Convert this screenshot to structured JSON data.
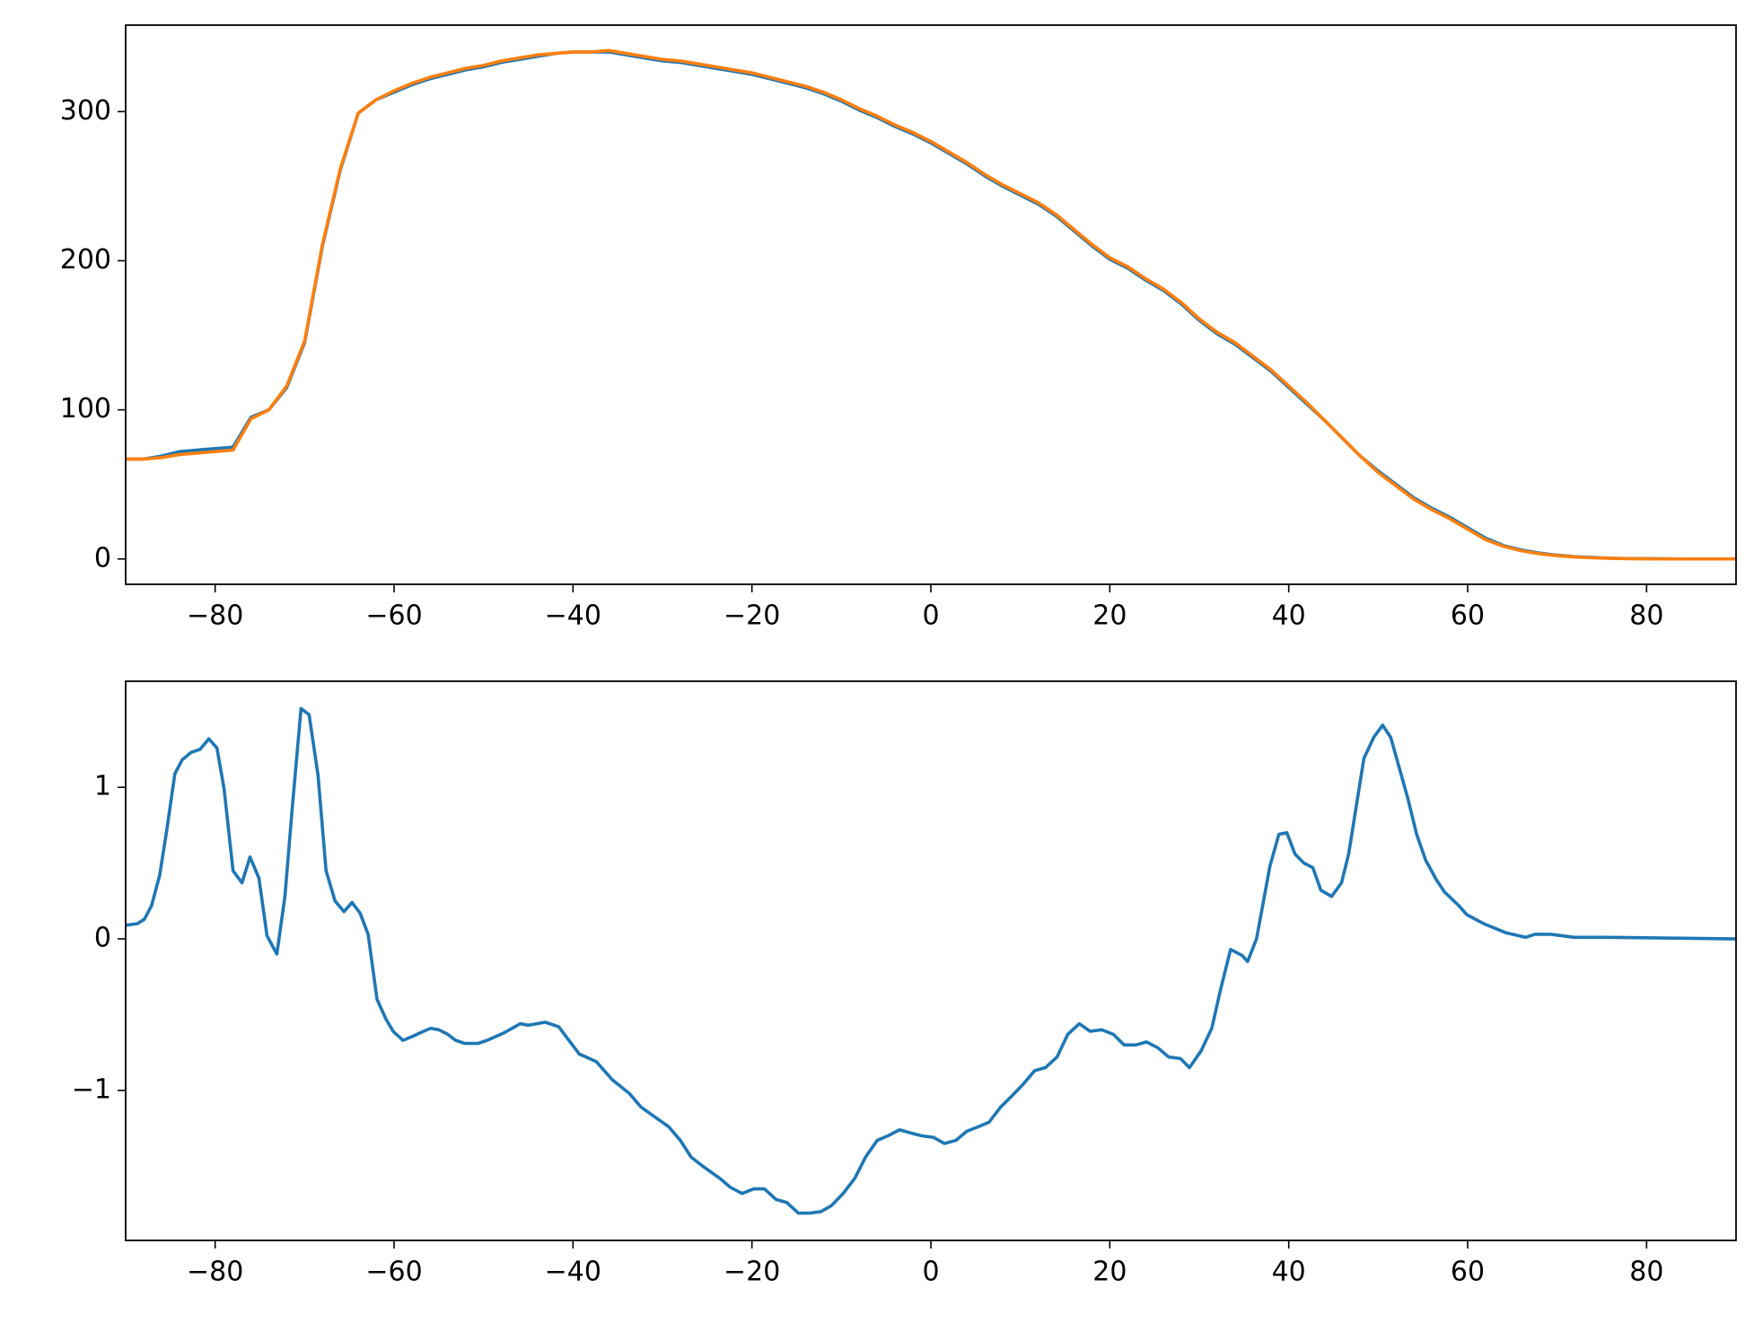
{
  "chart_data": [
    {
      "type": "line",
      "x": [
        -90,
        -88,
        -86,
        -84,
        -82,
        -80,
        -78,
        -76,
        -74,
        -72,
        -70,
        -68,
        -66,
        -64,
        -62,
        -60,
        -58,
        -56,
        -54,
        -52,
        -50,
        -48,
        -46,
        -44,
        -42,
        -40,
        -38,
        -36,
        -34,
        -32,
        -30,
        -28,
        -26,
        -24,
        -22,
        -20,
        -18,
        -16,
        -14,
        -12,
        -10,
        -8,
        -6,
        -4,
        -2,
        0,
        2,
        4,
        6,
        8,
        10,
        12,
        14,
        16,
        18,
        20,
        22,
        24,
        26,
        28,
        30,
        32,
        34,
        36,
        38,
        40,
        42,
        44,
        46,
        48,
        50,
        52,
        54,
        56,
        58,
        60,
        62,
        64,
        66,
        68,
        70,
        72,
        74,
        76,
        78,
        80,
        82,
        84,
        86,
        88,
        90
      ],
      "series": [
        {
          "color": "#1f77b4",
          "values": [
            67,
            67,
            69,
            72,
            73,
            74,
            75,
            95,
            100,
            115,
            145,
            210,
            261,
            299,
            308,
            313,
            318,
            322,
            325,
            328,
            330,
            333,
            335,
            337,
            339,
            340,
            340,
            340,
            338,
            336,
            334,
            333,
            331,
            329,
            327,
            325,
            322,
            319,
            316,
            312,
            307,
            301,
            296,
            290,
            285,
            279,
            272,
            265,
            257,
            250,
            244,
            238,
            230,
            220,
            210,
            201,
            195,
            187,
            180,
            171,
            160,
            151,
            144,
            135,
            126,
            115,
            104,
            93,
            81,
            69,
            59,
            50,
            41,
            34,
            28,
            21,
            14,
            9,
            6,
            4,
            2.5,
            1.5,
            1,
            0.5,
            0.3,
            0.2,
            0.1,
            0,
            0,
            0,
            0
          ]
        },
        {
          "color": "#ff7f0e",
          "values": [
            67,
            67,
            68,
            70,
            71,
            72,
            73,
            94,
            100,
            116,
            146,
            211,
            262,
            299,
            308,
            314,
            319,
            323,
            326,
            329,
            331,
            334,
            336,
            338,
            339,
            340,
            340,
            341,
            339,
            337,
            335,
            334,
            332,
            330,
            328,
            326,
            323,
            320,
            317,
            313,
            308,
            302,
            297,
            291,
            286,
            280,
            273,
            266,
            258,
            251,
            245,
            239,
            231,
            221,
            211,
            202,
            196,
            188,
            181,
            172,
            161,
            152,
            145,
            136,
            127,
            116,
            105,
            93,
            81,
            69,
            58,
            49,
            40,
            33,
            27,
            20,
            13,
            8.5,
            5.5,
            3.5,
            2.2,
            1.3,
            0.8,
            0.4,
            0.2,
            0.1,
            0,
            0,
            0,
            0,
            0
          ]
        }
      ],
      "xlim": [
        -90,
        90
      ],
      "ylim": [
        -17,
        358
      ],
      "xticks": [
        {
          "value": -80,
          "label": "−80"
        },
        {
          "value": -60,
          "label": "−60"
        },
        {
          "value": -40,
          "label": "−40"
        },
        {
          "value": -20,
          "label": "−20"
        },
        0,
        20,
        40,
        60,
        80
      ],
      "yticks": [
        0,
        100,
        200,
        300
      ]
    },
    {
      "type": "line",
      "x": [
        -90,
        -88.7,
        -87.9,
        -87.1,
        -86.2,
        -85.4,
        -84.5,
        -83.7,
        -82.7,
        -81.7,
        -80.7,
        -79.8,
        -79.0,
        -78.0,
        -77.0,
        -76.1,
        -75.1,
        -74.2,
        -73.1,
        -72.2,
        -71.4,
        -70.4,
        -69.5,
        -68.5,
        -67.6,
        -66.6,
        -65.6,
        -64.7,
        -63.8,
        -62.9,
        -61.9,
        -60.9,
        -60.1,
        -59.0,
        -57.8,
        -56.7,
        -55.9,
        -55.0,
        -54.0,
        -53.1,
        -52.1,
        -50.6,
        -49.6,
        -47.7,
        -45.9,
        -45.0,
        -43.1,
        -41.6,
        -39.3,
        -37.4,
        -35.6,
        -33.7,
        -32.4,
        -30.5,
        -29.3,
        -28.0,
        -26.8,
        -25.5,
        -23.6,
        -22.4,
        -21.1,
        -19.8,
        -18.6,
        -17.3,
        -16.1,
        -14.8,
        -13.6,
        -12.3,
        -11.1,
        -9.8,
        -8.5,
        -7.3,
        -6.0,
        -4.8,
        -3.5,
        -2.3,
        -1.0,
        0.3,
        1.5,
        2.8,
        4.0,
        5.3,
        6.5,
        7.8,
        9.0,
        10.3,
        11.6,
        12.8,
        14.1,
        15.3,
        16.6,
        17.8,
        19.1,
        20.4,
        21.6,
        22.9,
        24.1,
        25.4,
        26.6,
        27.9,
        28.9,
        30.2,
        31.4,
        32.4,
        33.5,
        34.8,
        35.4,
        36.4,
        37.9,
        38.9,
        39.8,
        40.7,
        41.7,
        42.7,
        43.6,
        44.8,
        45.9,
        46.7,
        48.4,
        49.5,
        50.5,
        51.4,
        53.3,
        54.3,
        55.3,
        56.5,
        57.4,
        59.0,
        59.9,
        61.8,
        64.3,
        66.5,
        67.5,
        69.3,
        71.9,
        75.6,
        90
      ],
      "series": [
        {
          "color": "#1f77b4",
          "values": [
            0.09,
            0.1,
            0.13,
            0.22,
            0.42,
            0.72,
            1.09,
            1.18,
            1.23,
            1.25,
            1.32,
            1.26,
            0.99,
            0.45,
            0.37,
            0.54,
            0.4,
            0.02,
            -0.1,
            0.28,
            0.85,
            1.52,
            1.48,
            1.08,
            0.45,
            0.25,
            0.18,
            0.24,
            0.17,
            0.03,
            -0.4,
            -0.53,
            -0.61,
            -0.67,
            -0.64,
            -0.61,
            -0.59,
            -0.6,
            -0.63,
            -0.67,
            -0.69,
            -0.69,
            -0.67,
            -0.62,
            -0.56,
            -0.57,
            -0.55,
            -0.58,
            -0.76,
            -0.81,
            -0.93,
            -1.02,
            -1.11,
            -1.19,
            -1.24,
            -1.33,
            -1.44,
            -1.5,
            -1.58,
            -1.64,
            -1.68,
            -1.65,
            -1.65,
            -1.72,
            -1.74,
            -1.81,
            -1.81,
            -1.8,
            -1.76,
            -1.68,
            -1.58,
            -1.44,
            -1.33,
            -1.3,
            -1.26,
            -1.28,
            -1.3,
            -1.31,
            -1.35,
            -1.33,
            -1.27,
            -1.24,
            -1.21,
            -1.11,
            -1.04,
            -0.96,
            -0.87,
            -0.85,
            -0.78,
            -0.63,
            -0.56,
            -0.61,
            -0.6,
            -0.63,
            -0.7,
            -0.7,
            -0.68,
            -0.72,
            -0.78,
            -0.79,
            -0.85,
            -0.74,
            -0.59,
            -0.33,
            -0.07,
            -0.11,
            -0.15,
            0.0,
            0.48,
            0.69,
            0.7,
            0.56,
            0.5,
            0.47,
            0.32,
            0.28,
            0.37,
            0.56,
            1.19,
            1.33,
            1.41,
            1.33,
            0.93,
            0.69,
            0.52,
            0.39,
            0.31,
            0.22,
            0.16,
            0.1,
            0.04,
            0.01,
            0.03,
            0.03,
            0.01,
            0.01,
            0
          ]
        }
      ],
      "xlim": [
        -90,
        90
      ],
      "ylim": [
        -1.99,
        1.7
      ],
      "xticks": [
        {
          "value": -80,
          "label": "−80"
        },
        {
          "value": -60,
          "label": "−60"
        },
        {
          "value": -40,
          "label": "−40"
        },
        {
          "value": -20,
          "label": "−20"
        },
        0,
        20,
        40,
        60,
        80
      ],
      "yticks": [
        {
          "value": -1,
          "label": "−1"
        },
        0,
        1
      ]
    }
  ]
}
